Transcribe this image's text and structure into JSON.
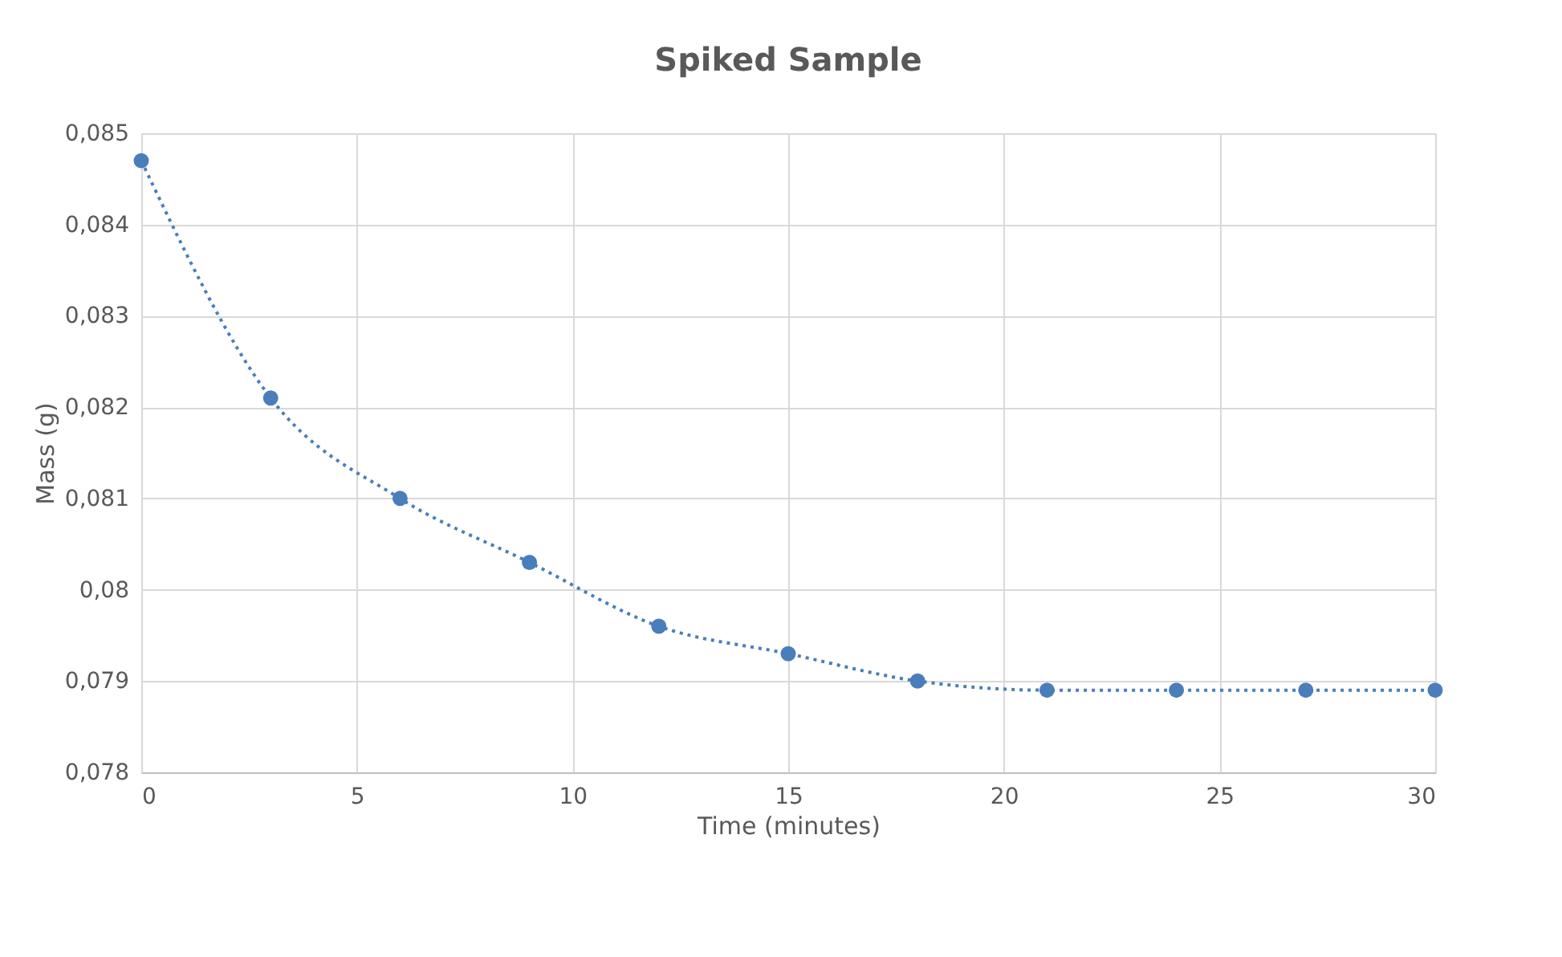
{
  "chart_data": {
    "type": "line",
    "title": "Spiked Sample",
    "xlabel": "Time (minutes)",
    "ylabel": "Mass  (g)",
    "x": [
      0,
      3,
      6,
      9,
      12,
      15,
      18,
      21,
      24,
      27,
      30
    ],
    "series": [
      {
        "color": "#4a7ebb",
        "values": [
          0.0847,
          0.0821,
          0.081,
          0.0803,
          0.0796,
          0.0793,
          0.079,
          0.0789,
          0.0789,
          0.0789,
          0.0789
        ]
      }
    ],
    "xlim": [
      0,
      30
    ],
    "xticks": [
      0,
      5,
      10,
      15,
      20,
      25,
      30
    ],
    "ylim": [
      0.078,
      0.085
    ],
    "yticks": [
      {
        "value": 0.078,
        "label": "0,078"
      },
      {
        "value": 0.079,
        "label": "0,079"
      },
      {
        "value": 0.08,
        "label": "0,08"
      },
      {
        "value": 0.081,
        "label": "0,081"
      },
      {
        "value": 0.082,
        "label": "0,082"
      },
      {
        "value": 0.083,
        "label": "0,083"
      },
      {
        "value": 0.084,
        "label": "0,084"
      },
      {
        "value": 0.085,
        "label": "0,085"
      }
    ],
    "grid": true,
    "marker": "circle",
    "line_style": "dotted"
  }
}
